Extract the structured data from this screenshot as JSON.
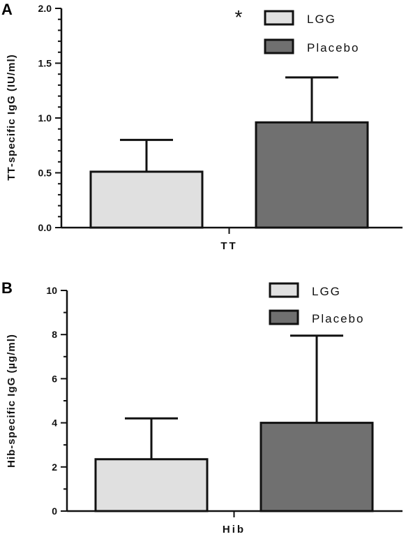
{
  "chart_data": [
    {
      "type": "bar",
      "panel_label": "A",
      "categories": [
        "TT"
      ],
      "ylabel": "TT-specific IgG (IU/ml)",
      "ylim": [
        0,
        2.0
      ],
      "yticks": [
        "0.0",
        "0.5",
        "1.0",
        "1.5",
        "2.0"
      ],
      "series": [
        {
          "name": "LGG",
          "values": [
            0.51
          ],
          "error": [
            0.8
          ],
          "color": "#e0e0e0"
        },
        {
          "name": "Placebo",
          "values": [
            0.96
          ],
          "error": [
            1.37
          ],
          "color": "#707070"
        }
      ],
      "annotation": "*",
      "legend_position": "top-right"
    },
    {
      "type": "bar",
      "panel_label": "B",
      "categories": [
        "Hib"
      ],
      "ylabel": "Hib-specific IgG (µg/ml)",
      "ylim": [
        0,
        10
      ],
      "yticks": [
        "0",
        "2",
        "4",
        "6",
        "8",
        "10"
      ],
      "series": [
        {
          "name": "LGG",
          "values": [
            2.35
          ],
          "error": [
            4.2
          ],
          "color": "#e0e0e0"
        },
        {
          "name": "Placebo",
          "values": [
            4.0
          ],
          "error": [
            7.95
          ],
          "color": "#707070"
        }
      ],
      "legend_position": "top-right"
    }
  ]
}
